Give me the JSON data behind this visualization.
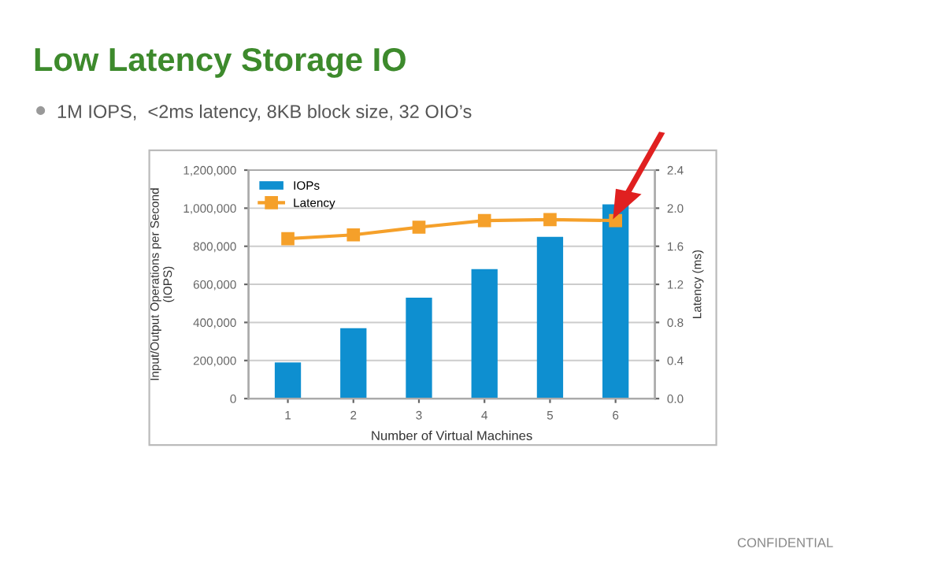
{
  "chart_data": {
    "type": "bar",
    "title": "Low Latency Storage IO",
    "subtitle": "1M IOPS,  <2ms latency, 8KB block size, 32 OIO’s",
    "categories": [
      "1",
      "2",
      "3",
      "4",
      "5",
      "6"
    ],
    "series": [
      {
        "name": "IOPs",
        "color": "#0e8fd0",
        "values": [
          190000,
          370000,
          530000,
          680000,
          850000,
          1020000
        ]
      },
      {
        "name": "Latency",
        "type": "line",
        "axis": "y2",
        "color": "#f5a02a",
        "marker": "square",
        "values": [
          1.68,
          1.72,
          1.8,
          1.87,
          1.88,
          1.87
        ]
      }
    ],
    "xlabel": "Number of Virtual Machines",
    "ylabel": "Input/Output Operations per Second\n(IOPS)",
    "y2label": "Latency (ms)",
    "ylim": [
      0,
      1200000
    ],
    "yticks": [
      0,
      {
        "value": 200000,
        "label": "200,000"
      },
      {
        "value": 400000,
        "label": "400,000"
      },
      {
        "value": 600000,
        "label": "600,000"
      },
      {
        "value": 800000,
        "label": "800,000"
      },
      {
        "value": 1000000,
        "label": "1,000,000"
      },
      {
        "value": 1200000,
        "label": "1,200,000"
      }
    ],
    "y2lim": [
      0,
      2.4
    ],
    "y2ticks": [
      {
        "value": 0,
        "label": "0.0"
      },
      {
        "value": 0.4,
        "label": "0.4"
      },
      {
        "value": 0.8,
        "label": "0.8"
      },
      {
        "value": 1.2,
        "label": "1.2"
      },
      {
        "value": 1.6,
        "label": "1.6"
      },
      {
        "value": 2.0,
        "label": "2.0"
      },
      {
        "value": 2.4,
        "label": "2.4"
      }
    ],
    "grid": "y",
    "legend": "top left",
    "annotations": [
      "CONFIDENTIAL"
    ]
  }
}
